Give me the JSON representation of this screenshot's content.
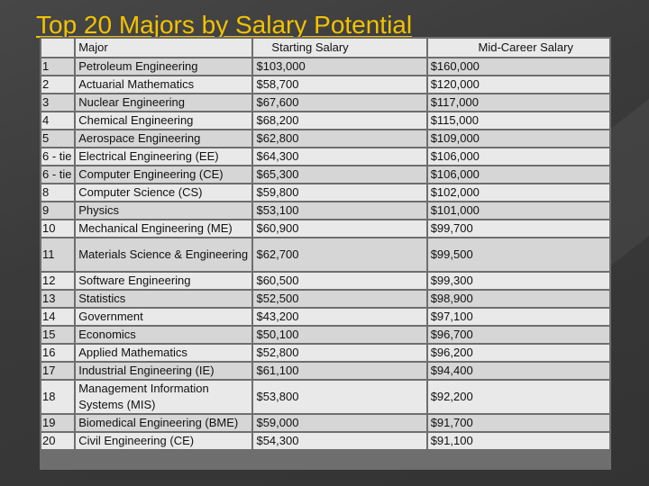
{
  "title": "Top 20 Majors by Salary Potential",
  "table": {
    "headers": {
      "rank": "",
      "major": "Major",
      "starting": "Starting Salary",
      "mid": "Mid-Career Salary"
    },
    "rows": [
      {
        "rank": "1",
        "major": "Petroleum Engineering",
        "starting": "$103,000",
        "mid": "$160,000"
      },
      {
        "rank": "2",
        "major": "Actuarial Mathematics",
        "starting": "$58,700",
        "mid": "$120,000"
      },
      {
        "rank": "3",
        "major": "Nuclear Engineering",
        "starting": "$67,600",
        "mid": "$117,000"
      },
      {
        "rank": "4",
        "major": "Chemical Engineering",
        "starting": "$68,200",
        "mid": "$115,000"
      },
      {
        "rank": "5",
        "major": "Aerospace Engineering",
        "starting": "$62,800",
        "mid": "$109,000"
      },
      {
        "rank": "6 - tie",
        "major": "Electrical Engineering (EE)",
        "starting": "$64,300",
        "mid": "$106,000"
      },
      {
        "rank": "6 - tie",
        "major": "Computer Engineering (CE)",
        "starting": "$65,300",
        "mid": "$106,000"
      },
      {
        "rank": "8",
        "major": "Computer Science (CS)",
        "starting": "$59,800",
        "mid": "$102,000"
      },
      {
        "rank": "9",
        "major": "Physics",
        "starting": "$53,100",
        "mid": "$101,000"
      },
      {
        "rank": "10",
        "major": "Mechanical Engineering (ME)",
        "starting": "$60,900",
        "mid": "$99,700"
      },
      {
        "rank": "11",
        "major": "Materials Science & Engineering",
        "starting": "$62,700",
        "mid": "$99,500"
      },
      {
        "rank": "12",
        "major": "Software Engineering",
        "starting": "$60,500",
        "mid": "$99,300"
      },
      {
        "rank": "13",
        "major": "Statistics",
        "starting": "$52,500",
        "mid": "$98,900"
      },
      {
        "rank": "14",
        "major": "Government",
        "starting": "$43,200",
        "mid": "$97,100"
      },
      {
        "rank": "15",
        "major": "Economics",
        "starting": "$50,100",
        "mid": "$96,700"
      },
      {
        "rank": "16",
        "major": "Applied Mathematics",
        "starting": "$52,800",
        "mid": "$96,200"
      },
      {
        "rank": "17",
        "major": "Industrial Engineering (IE)",
        "starting": "$61,100",
        "mid": "$94,400"
      },
      {
        "rank": "18",
        "major": "Management Information Systems (MIS)",
        "starting": "$53,800",
        "mid": "$92,200"
      },
      {
        "rank": "19",
        "major": "Biomedical Engineering (BME)",
        "starting": "$59,000",
        "mid": "$91,700"
      },
      {
        "rank": "20",
        "major": "Civil Engineering (CE)",
        "starting": "$54,300",
        "mid": "$91,100"
      }
    ]
  },
  "colors": {
    "title": "#f2c200",
    "background": "#3d3d3d",
    "row_light": "#e9e9e9",
    "row_dark": "#d6d6d6"
  }
}
